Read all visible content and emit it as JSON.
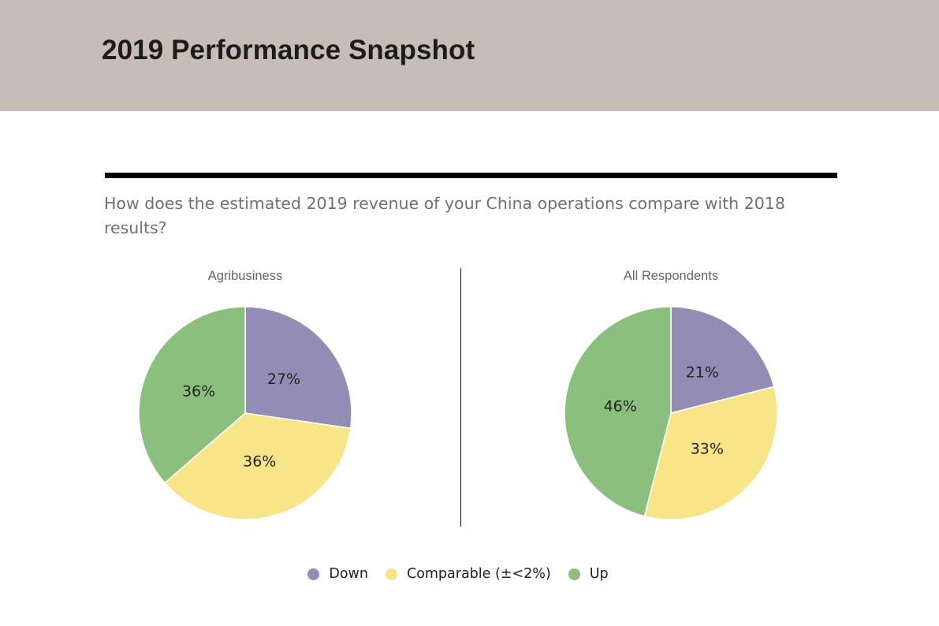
{
  "header": {
    "title": "2019 Performance Snapshot"
  },
  "question": "How does the estimated 2019 revenue of your China operations compare with 2018 results?",
  "legend": [
    {
      "label": "Down",
      "color": "#938cb4"
    },
    {
      "label": "Comparable (±<2%)",
      "color": "#f8e588"
    },
    {
      "label": "Up",
      "color": "#8bbf7d"
    }
  ],
  "chart_data": [
    {
      "type": "pie",
      "title": "Agribusiness",
      "categories": [
        "Down",
        "Comparable (±<2%)",
        "Up"
      ],
      "values": [
        27,
        36,
        36
      ],
      "labels": [
        "27%",
        "36%",
        "36%"
      ],
      "colors": [
        "#938cb4",
        "#f8e588",
        "#8bbf7d"
      ]
    },
    {
      "type": "pie",
      "title": "All Respondents",
      "categories": [
        "Down",
        "Comparable (±<2%)",
        "Up"
      ],
      "values": [
        21,
        33,
        46
      ],
      "labels": [
        "21%",
        "33%",
        "46%"
      ],
      "colors": [
        "#938cb4",
        "#f8e588",
        "#8bbf7d"
      ]
    }
  ]
}
